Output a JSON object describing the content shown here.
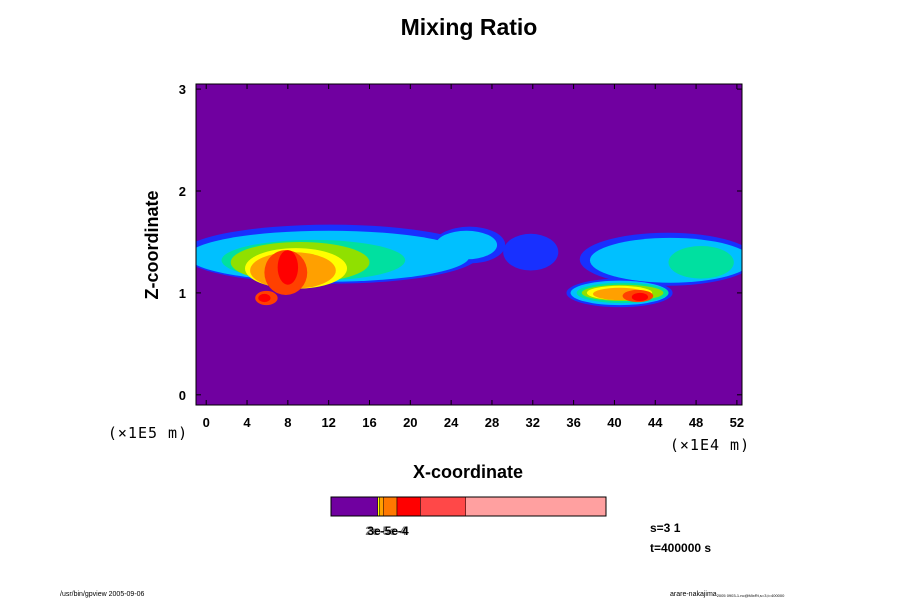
{
  "chart_data": {
    "type": "heatmap",
    "title": "Mixing Ratio",
    "xlabel": "X-coordinate",
    "ylabel": "Z-coordinate",
    "x_unit": "(×1E4 m)",
    "y_unit": "(×1E5 m)",
    "xlim": [
      -1,
      52.5
    ],
    "ylim": [
      -0.1,
      3.05
    ],
    "x_ticks": [
      0,
      4,
      8,
      12,
      16,
      20,
      24,
      28,
      32,
      36,
      40,
      44,
      48,
      52
    ],
    "y_ticks": [
      0,
      1,
      2,
      3
    ],
    "background_color": "#7000a0",
    "colorbar": {
      "colors": [
        "#7000a0",
        "#ffff00",
        "#ffa000",
        "#ff7800",
        "#ff0000",
        "#ff4848",
        "#ffa0a0"
      ],
      "fractions": [
        0.17,
        0.007,
        0.013,
        0.05,
        0.085,
        0.165,
        0.51
      ],
      "label_text": "3e-5e-4",
      "label_overlay_text": "2e-5e-4"
    },
    "layers": [
      {
        "color": "#1830ff",
        "blobs": [
          {
            "x": 12.2,
            "z": 1.38,
            "rx": 14.6,
            "rz": 0.29
          },
          {
            "x": 25.8,
            "z": 1.47,
            "rx": 3.5,
            "rz": 0.18
          },
          {
            "x": 31.8,
            "z": 1.4,
            "rx": 2.7,
            "rz": 0.18
          },
          {
            "x": 45.2,
            "z": 1.33,
            "rx": 8.6,
            "rz": 0.26
          },
          {
            "x": 40.5,
            "z": 1.0,
            "rx": 5.2,
            "rz": 0.14
          }
        ]
      },
      {
        "color": "#00c0ff",
        "blobs": [
          {
            "x": 12.0,
            "z": 1.36,
            "rx": 13.8,
            "rz": 0.25
          },
          {
            "x": 25.5,
            "z": 1.47,
            "rx": 3.0,
            "rz": 0.14
          },
          {
            "x": 45.5,
            "z": 1.32,
            "rx": 7.9,
            "rz": 0.22
          },
          {
            "x": 40.5,
            "z": 1.0,
            "rx": 4.8,
            "rz": 0.12
          }
        ]
      },
      {
        "color": "#00e0a0",
        "blobs": [
          {
            "x": 10.5,
            "z": 1.32,
            "rx": 9.0,
            "rz": 0.2
          },
          {
            "x": 40.8,
            "z": 1.0,
            "rx": 4.5,
            "rz": 0.1
          },
          {
            "x": 48.5,
            "z": 1.3,
            "rx": 3.2,
            "rz": 0.16
          }
        ]
      },
      {
        "color": "#90e000",
        "blobs": [
          {
            "x": 9.2,
            "z": 1.3,
            "rx": 6.8,
            "rz": 0.2
          },
          {
            "x": 40.8,
            "z": 1.0,
            "rx": 4.0,
            "rz": 0.08
          }
        ]
      },
      {
        "color": "#ffff00",
        "blobs": [
          {
            "x": 8.8,
            "z": 1.24,
            "rx": 5.0,
            "rz": 0.2
          },
          {
            "x": 40.5,
            "z": 1.0,
            "rx": 3.2,
            "rz": 0.07
          }
        ]
      },
      {
        "color": "#ffa000",
        "blobs": [
          {
            "x": 8.5,
            "z": 1.22,
            "rx": 4.2,
            "rz": 0.18
          },
          {
            "x": 40.5,
            "z": 0.99,
            "rx": 2.6,
            "rz": 0.06
          }
        ]
      },
      {
        "color": "#ff4000",
        "blobs": [
          {
            "x": 7.8,
            "z": 1.2,
            "rx": 2.1,
            "rz": 0.22
          },
          {
            "x": 5.9,
            "z": 0.95,
            "rx": 1.1,
            "rz": 0.07
          },
          {
            "x": 42.3,
            "z": 0.97,
            "rx": 1.5,
            "rz": 0.06
          }
        ]
      },
      {
        "color": "#ff0000",
        "blobs": [
          {
            "x": 8.0,
            "z": 1.25,
            "rx": 1.0,
            "rz": 0.17
          },
          {
            "x": 5.7,
            "z": 0.95,
            "rx": 0.6,
            "rz": 0.04
          },
          {
            "x": 42.5,
            "z": 0.96,
            "rx": 0.8,
            "rz": 0.04
          }
        ]
      }
    ]
  },
  "info": {
    "slice": "s=3 1",
    "time": "t=400000 s"
  },
  "footer": {
    "left": "/usr/bin/gpview 2005-09-06",
    "right": "arare-nakajima",
    "right_small": "2005 0903-1.nc@MixRt,s=3,t=400000"
  }
}
